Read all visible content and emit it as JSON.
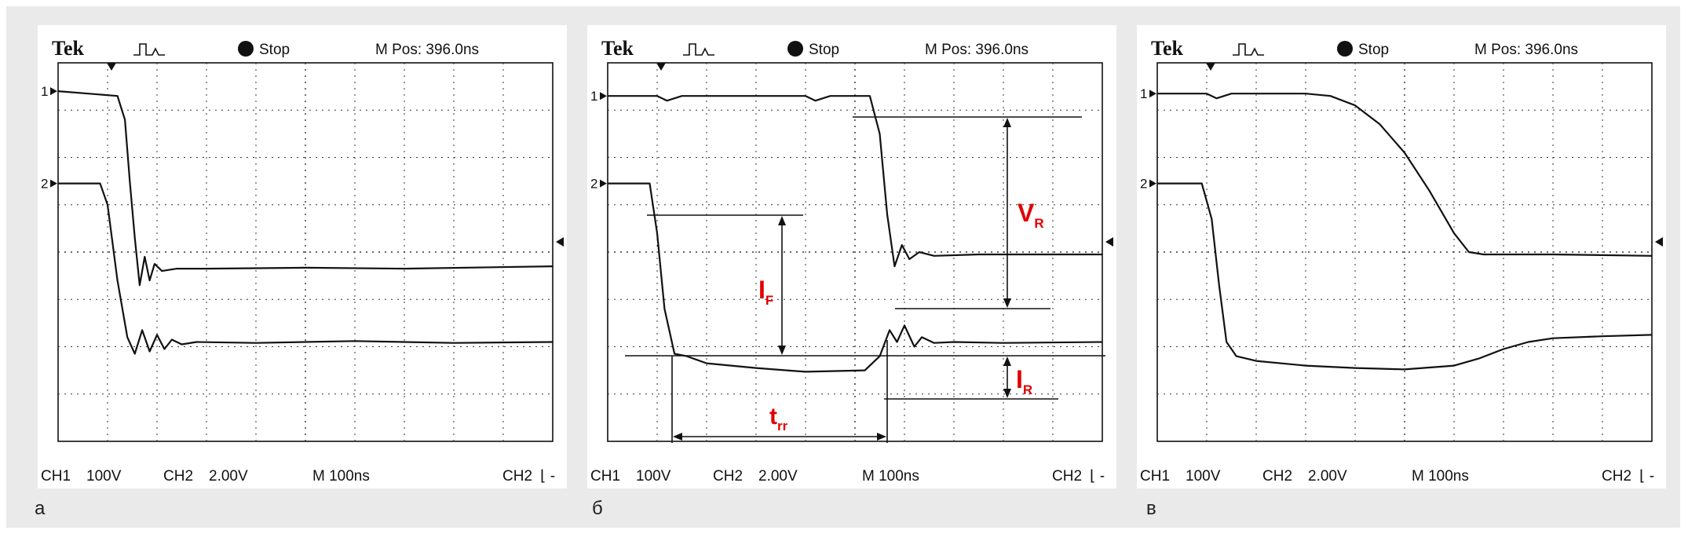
{
  "panels": [
    {
      "caption": "а",
      "header": {
        "brand": "Tek",
        "status": "Stop",
        "mpos": "M Pos: 396.0ns"
      },
      "footer": {
        "ch1": "CH1",
        "ch1_scale": "100V",
        "ch2": "CH2",
        "ch2_scale": "2.00V",
        "time": "M 100ns",
        "trigger": "CH2",
        "trigger_mark": "⌊ -"
      },
      "channel_markers": [
        "1",
        "2"
      ]
    },
    {
      "caption": "б",
      "header": {
        "brand": "Tek",
        "status": "Stop",
        "mpos": "M Pos: 396.0ns"
      },
      "footer": {
        "ch1": "CH1",
        "ch1_scale": "100V",
        "ch2": "CH2",
        "ch2_scale": "2.00V",
        "time": "M 100ns",
        "trigger": "CH2",
        "trigger_mark": "⌊ -"
      },
      "channel_markers": [
        "1",
        "2"
      ],
      "annotations": {
        "vr": {
          "main": "V",
          "sub": "R"
        },
        "if": {
          "main": "I",
          "sub": "F"
        },
        "ir": {
          "main": "I",
          "sub": "R"
        },
        "trr": {
          "main": "t",
          "sub": "rr"
        }
      }
    },
    {
      "caption": "в",
      "header": {
        "brand": "Tek",
        "status": "Stop",
        "mpos": "M Pos: 396.0ns"
      },
      "footer": {
        "ch1": "CH1",
        "ch1_scale": "100V",
        "ch2": "CH2",
        "ch2_scale": "2.00V",
        "time": "M 100ns",
        "trigger": "CH2",
        "trigger_mark": "⌊ -"
      },
      "channel_markers": [
        "1",
        "2"
      ]
    }
  ],
  "chart_data": [
    {
      "type": "line",
      "grid": true,
      "x_unit": "div",
      "y_unit": "div",
      "xlim": [
        0,
        10
      ],
      "ylim": [
        0,
        8
      ],
      "series": [
        {
          "x": [
            0,
            1.2,
            1.35,
            1.45,
            1.55,
            1.65,
            1.75,
            1.85,
            1.95,
            2.1,
            2.4,
            3,
            5,
            7,
            10
          ],
          "y": [
            7.4,
            7.3,
            6.8,
            5.5,
            4.3,
            3.3,
            3.9,
            3.4,
            3.75,
            3.6,
            3.65,
            3.65,
            3.67,
            3.65,
            3.7
          ]
        },
        {
          "x": [
            0,
            0.85,
            1.0,
            1.2,
            1.4,
            1.55,
            1.7,
            1.85,
            2.0,
            2.15,
            2.3,
            2.5,
            2.8,
            4,
            6,
            8,
            10
          ],
          "y": [
            5.45,
            5.45,
            5.0,
            3.4,
            2.2,
            1.85,
            2.35,
            1.9,
            2.25,
            1.95,
            2.15,
            2.05,
            2.1,
            2.08,
            2.12,
            2.08,
            2.1
          ]
        }
      ]
    },
    {
      "type": "line",
      "grid": true,
      "x_unit": "div",
      "y_unit": "div",
      "xlim": [
        0,
        10
      ],
      "ylim": [
        0,
        8
      ],
      "series": [
        {
          "x": [
            0,
            1.0,
            1.2,
            1.5,
            3,
            4.0,
            4.2,
            4.5,
            5.3,
            5.5,
            5.65,
            5.8,
            5.95,
            6.1,
            6.3,
            6.6,
            7.5,
            10
          ],
          "y": [
            7.3,
            7.3,
            7.2,
            7.3,
            7.3,
            7.3,
            7.2,
            7.3,
            7.3,
            6.5,
            4.8,
            3.7,
            4.15,
            3.85,
            4.0,
            3.92,
            3.95,
            3.95
          ]
        },
        {
          "x": [
            0,
            0.85,
            1.0,
            1.15,
            1.35,
            1.6,
            2,
            3,
            4,
            5.2,
            5.5,
            5.7,
            5.85,
            6.0,
            6.2,
            6.35,
            6.6,
            7,
            8,
            10
          ],
          "y": [
            5.45,
            5.45,
            4.4,
            2.8,
            1.85,
            1.8,
            1.65,
            1.55,
            1.47,
            1.5,
            1.8,
            2.35,
            2.1,
            2.45,
            2.0,
            2.2,
            2.08,
            2.1,
            2.08,
            2.1
          ]
        }
      ]
    },
    {
      "type": "line",
      "grid": true,
      "x_unit": "div",
      "y_unit": "div",
      "xlim": [
        0,
        10
      ],
      "ylim": [
        0,
        8
      ],
      "series": [
        {
          "x": [
            0,
            1.0,
            1.2,
            1.5,
            2,
            3,
            3.5,
            4.0,
            4.5,
            5.0,
            5.5,
            6.0,
            6.3,
            6.6,
            7,
            8,
            10
          ],
          "y": [
            7.35,
            7.35,
            7.25,
            7.35,
            7.35,
            7.35,
            7.3,
            7.1,
            6.7,
            6.1,
            5.3,
            4.4,
            4.0,
            3.95,
            3.95,
            3.95,
            3.92
          ]
        },
        {
          "x": [
            0,
            0.9,
            1.1,
            1.25,
            1.4,
            1.6,
            2,
            3,
            4,
            5,
            6,
            6.5,
            7,
            7.5,
            8,
            9,
            10
          ],
          "y": [
            5.45,
            5.45,
            4.7,
            3.3,
            2.1,
            1.8,
            1.7,
            1.6,
            1.55,
            1.52,
            1.6,
            1.75,
            1.95,
            2.1,
            2.18,
            2.22,
            2.25
          ]
        }
      ]
    }
  ]
}
